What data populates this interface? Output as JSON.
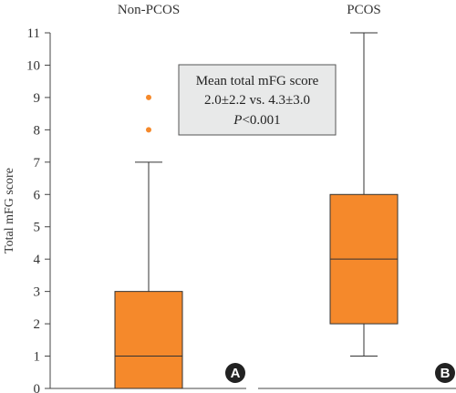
{
  "chart_data": {
    "type": "box",
    "ylabel": "Total mFG score",
    "ylim": [
      0,
      11
    ],
    "yticks": [
      0,
      1,
      2,
      3,
      4,
      5,
      6,
      7,
      8,
      9,
      10,
      11
    ],
    "grid": false,
    "box_color": "#F5892B",
    "outlier_color": "#F5892B",
    "groups": [
      {
        "name": "Non-PCOS",
        "panel": "A",
        "min": 0,
        "q1": 0,
        "median": 1,
        "q3": 3,
        "max": 7,
        "outliers": [
          8,
          9
        ]
      },
      {
        "name": "PCOS",
        "panel": "B",
        "min": 1,
        "q1": 2,
        "median": 4,
        "q3": 6,
        "max": 11,
        "outliers": []
      }
    ],
    "annotation": {
      "line1": "Mean total mFG score",
      "line2": "2.0±2.2 vs. 4.3±3.0",
      "line3_italic": "P",
      "line3_rest": "<0.001"
    }
  }
}
